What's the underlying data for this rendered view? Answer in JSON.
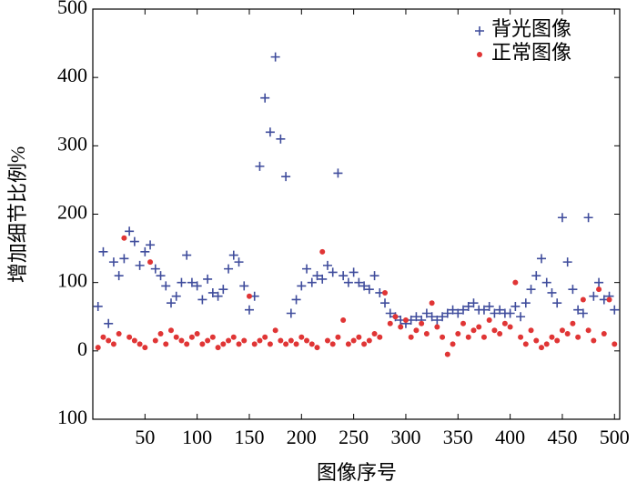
{
  "chart_data": {
    "type": "scatter",
    "xlabel": "图像序号",
    "ylabel": "增加细节比例%",
    "xlim": [
      0,
      505
    ],
    "ylim": [
      -100,
      500
    ],
    "xticks": [
      50,
      100,
      150,
      200,
      250,
      300,
      350,
      400,
      450,
      500
    ],
    "yticks": [
      {
        "value": -100,
        "label": "100"
      },
      0,
      100,
      200,
      300,
      400,
      500
    ],
    "legend": "upper right",
    "x": [
      5,
      10,
      15,
      20,
      25,
      30,
      35,
      40,
      45,
      50,
      55,
      60,
      65,
      70,
      75,
      80,
      85,
      90,
      95,
      100,
      105,
      110,
      115,
      120,
      125,
      130,
      135,
      140,
      145,
      150,
      155,
      160,
      165,
      170,
      175,
      180,
      185,
      190,
      195,
      200,
      205,
      210,
      215,
      220,
      225,
      230,
      235,
      240,
      245,
      250,
      255,
      260,
      265,
      270,
      275,
      280,
      285,
      290,
      295,
      300,
      305,
      310,
      315,
      320,
      325,
      330,
      335,
      340,
      345,
      350,
      355,
      360,
      365,
      370,
      375,
      380,
      385,
      390,
      395,
      400,
      405,
      410,
      415,
      420,
      425,
      430,
      435,
      440,
      445,
      450,
      455,
      460,
      465,
      470,
      475,
      480,
      485,
      490,
      495,
      500
    ],
    "series": [
      {
        "name": "背光图像",
        "color": "#3f4c9c",
        "marker": "plus",
        "values": [
          65,
          145,
          40,
          130,
          110,
          135,
          175,
          160,
          125,
          145,
          155,
          120,
          110,
          95,
          70,
          80,
          100,
          140,
          100,
          95,
          75,
          105,
          85,
          80,
          90,
          120,
          140,
          130,
          95,
          60,
          80,
          270,
          370,
          320,
          430,
          310,
          255,
          55,
          75,
          95,
          120,
          100,
          110,
          105,
          125,
          115,
          260,
          110,
          100,
          115,
          100,
          95,
          90,
          110,
          85,
          70,
          55,
          50,
          45,
          40,
          45,
          50,
          45,
          55,
          50,
          45,
          50,
          55,
          60,
          55,
          60,
          65,
          70,
          60,
          60,
          65,
          55,
          60,
          55,
          55,
          65,
          50,
          70,
          90,
          110,
          135,
          100,
          85,
          70,
          195,
          130,
          90,
          60,
          55,
          195,
          80,
          100,
          75,
          80,
          60
        ]
      },
      {
        "name": "正常图像",
        "color": "#e03535",
        "marker": "dot",
        "values": [
          5,
          20,
          15,
          10,
          25,
          165,
          20,
          15,
          10,
          5,
          130,
          15,
          25,
          10,
          30,
          20,
          15,
          10,
          20,
          25,
          10,
          15,
          20,
          5,
          10,
          15,
          20,
          10,
          15,
          80,
          10,
          15,
          20,
          10,
          30,
          15,
          10,
          15,
          10,
          20,
          15,
          10,
          5,
          145,
          15,
          10,
          20,
          45,
          10,
          15,
          20,
          10,
          15,
          25,
          20,
          85,
          40,
          50,
          35,
          45,
          20,
          30,
          40,
          25,
          70,
          35,
          20,
          -5,
          10,
          25,
          40,
          20,
          30,
          35,
          20,
          45,
          30,
          25,
          40,
          35,
          100,
          20,
          10,
          30,
          15,
          5,
          10,
          20,
          15,
          30,
          25,
          40,
          20,
          75,
          30,
          15,
          90,
          25,
          75,
          10
        ]
      }
    ]
  }
}
